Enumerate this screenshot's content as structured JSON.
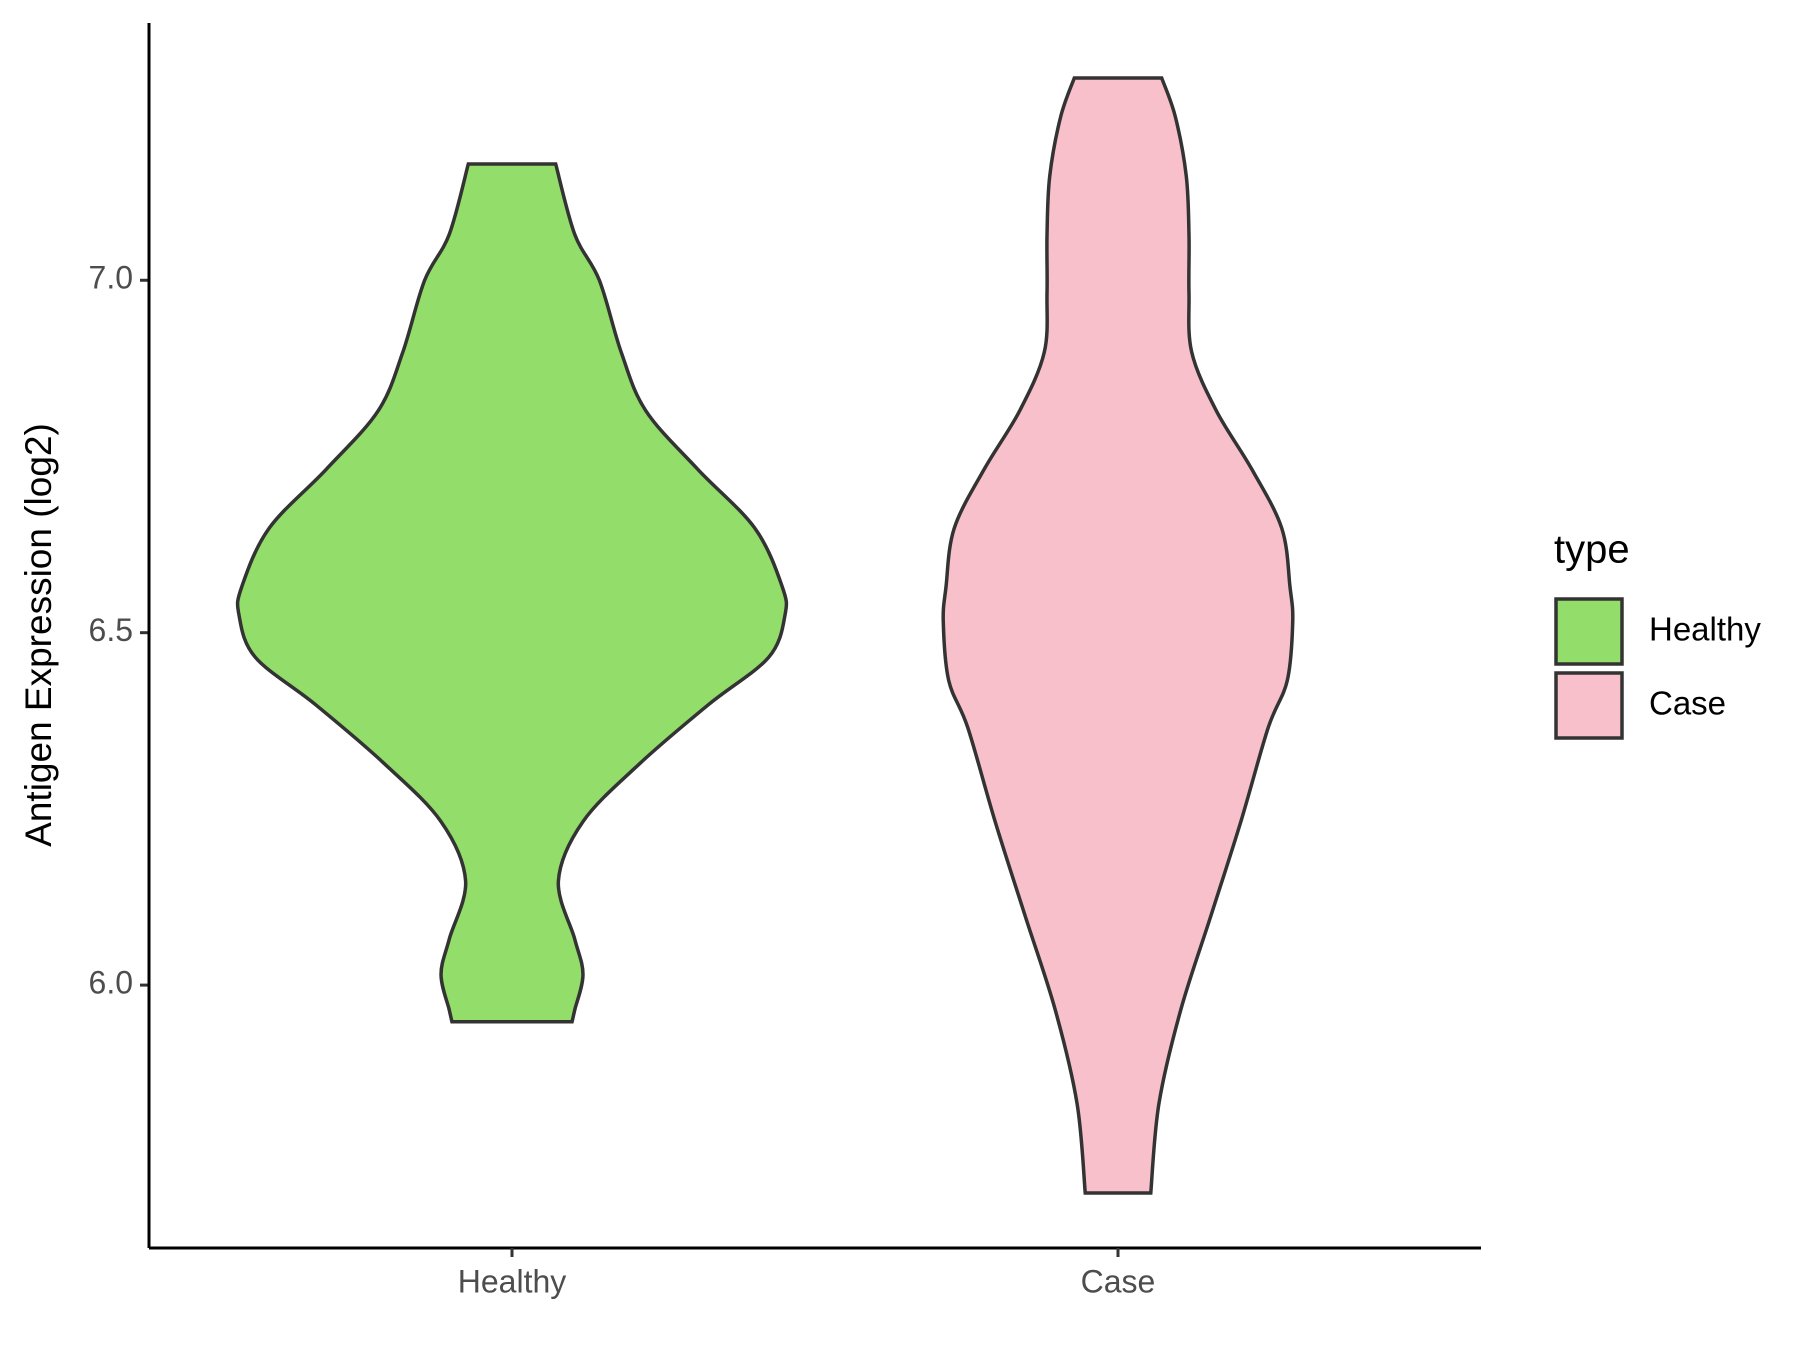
{
  "chart_data": {
    "type": "violin",
    "y_label": "Antigen Expression (log2)",
    "categories": [
      "Healthy",
      "Case"
    ],
    "legend_title": "type",
    "ylim": [
      5.627,
      7.365
    ],
    "yticks": [
      {
        "value": 6,
        "label": "6.0"
      },
      {
        "value": 6.5,
        "label": "6.5"
      },
      {
        "value": 7,
        "label": "7.0"
      }
    ],
    "legend_position": "right",
    "series": [
      {
        "name": "Healthy",
        "color": "#93dd6a",
        "y": [
          7.165,
          7.065,
          7.0,
          6.898,
          6.815,
          6.732,
          6.648,
          6.565,
          6.525,
          6.465,
          6.398,
          6.315,
          6.232,
          6.148,
          6.065,
          6.015,
          5.965,
          5.948
        ],
        "density": [
          0.16,
          0.23,
          0.32,
          0.4,
          0.49,
          0.68,
          0.89,
          0.99,
          1.0,
          0.94,
          0.72,
          0.47,
          0.26,
          0.17,
          0.23,
          0.26,
          0.23,
          0.22
        ]
      },
      {
        "name": "Case",
        "color": "#f7c0cb",
        "y": [
          7.287,
          7.232,
          7.148,
          7.065,
          6.982,
          6.898,
          6.815,
          6.732,
          6.648,
          6.565,
          6.515,
          6.432,
          6.365,
          6.232,
          6.098,
          5.965,
          5.832,
          5.705
        ],
        "density": [
          0.16,
          0.21,
          0.25,
          0.26,
          0.26,
          0.27,
          0.36,
          0.49,
          0.6,
          0.63,
          0.64,
          0.62,
          0.55,
          0.45,
          0.34,
          0.23,
          0.15,
          0.12
        ]
      }
    ]
  }
}
